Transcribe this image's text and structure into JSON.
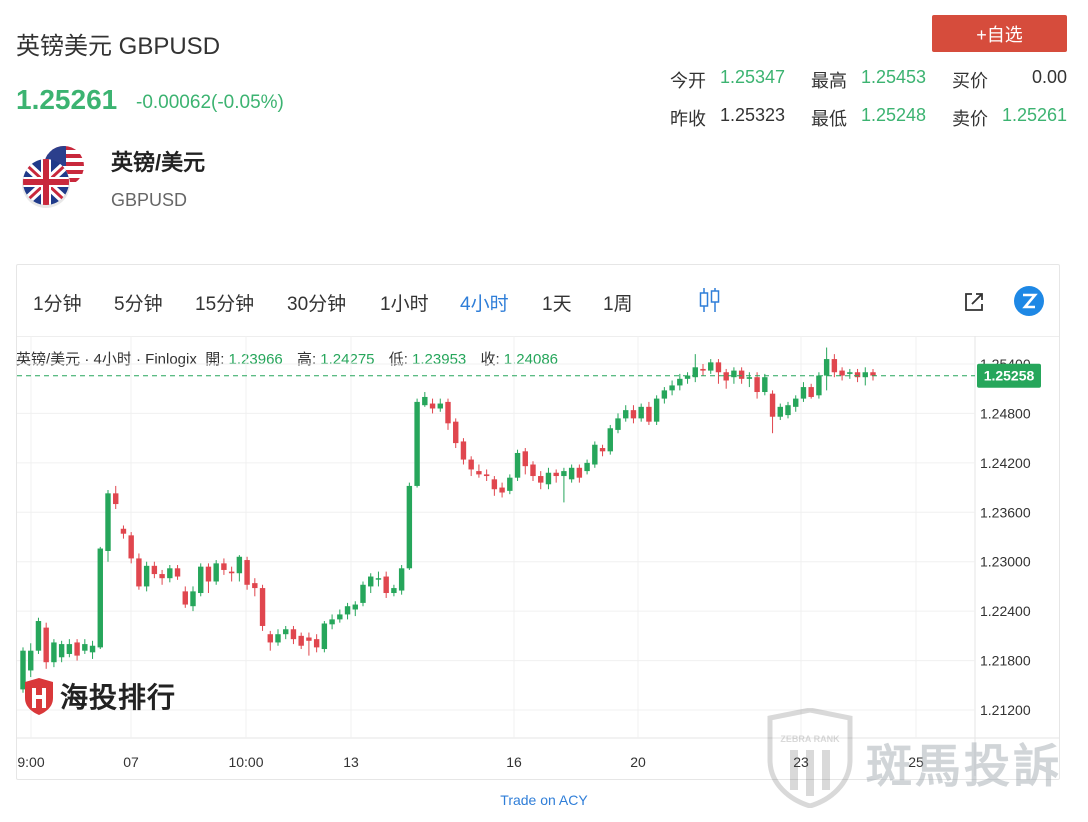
{
  "header": {
    "title": "英镑美元 GBPUSD",
    "price": "1.25261",
    "change": "-0.00062(-0.05%)",
    "add_label": "+自选"
  },
  "quotes": {
    "open_label": "今开",
    "open": "1.25347",
    "high_label": "最高",
    "high": "1.25453",
    "buy_label": "买价",
    "buy": "0.00",
    "prev_label": "昨收",
    "prev": "1.25323",
    "low_label": "最低",
    "low": "1.25248",
    "sell_label": "卖价",
    "sell": "1.25261"
  },
  "symbol": {
    "name_cn": "英镑/美元",
    "name_en": "GBPUSD",
    "icon": "gb-us-flag-icon"
  },
  "toolbar": {
    "timeframes": [
      "1分钟",
      "5分钟",
      "15分钟",
      "30分钟",
      "1小时",
      "4小时",
      "1天",
      "1周"
    ],
    "active_index": 5,
    "icons": [
      "candle-type-icon",
      "external-link-icon",
      "tradingview-logo-icon"
    ]
  },
  "legend": {
    "prefix": "英镑/美元 · 4小时 · Finlogix",
    "open_label": "開:",
    "open": "1.23966",
    "high_label": "高:",
    "high": "1.24275",
    "low_label": "低:",
    "low": "1.23953",
    "close_label": "收:",
    "close": "1.24086"
  },
  "colors": {
    "up": "#26a65b",
    "down": "#e0464e",
    "accent": "#2f7ed8",
    "button": "#d64c3c"
  },
  "chart_data": {
    "type": "candlestick",
    "y_ticks": [
      "1.25400",
      "1.24800",
      "1.24200",
      "1.23600",
      "1.23000",
      "1.22400",
      "1.21800",
      "1.21200"
    ],
    "x_ticks": [
      "9:00",
      "07",
      "10:00",
      "13",
      "16",
      "20",
      "23",
      "25"
    ],
    "last_price_label": "1.25258",
    "last_price": 1.25258,
    "ylim": [
      1.2086,
      1.2574
    ],
    "grid": true,
    "candles": [
      [
        1.2145,
        1.2192,
        1.2141,
        1.2196
      ],
      [
        1.2168,
        1.2192,
        1.216,
        1.2201
      ],
      [
        1.2192,
        1.2228,
        1.2188,
        1.2232
      ],
      [
        1.222,
        1.2178,
        1.217,
        1.2226
      ],
      [
        1.2178,
        1.2202,
        1.2172,
        1.2206
      ],
      [
        1.2184,
        1.22,
        1.2178,
        1.2204
      ],
      [
        1.2188,
        1.22,
        1.2184,
        1.2206
      ],
      [
        1.2202,
        1.2186,
        1.218,
        1.2206
      ],
      [
        1.2192,
        1.22,
        1.2188,
        1.2206
      ],
      [
        1.219,
        1.2198,
        1.2182,
        1.2204
      ],
      [
        1.2196,
        1.2316,
        1.2194,
        1.2318
      ],
      [
        1.2313,
        1.2383,
        1.23,
        1.2387
      ],
      [
        1.2383,
        1.237,
        1.2364,
        1.2392
      ],
      [
        1.234,
        1.2334,
        1.2328,
        1.2344
      ],
      [
        1.2332,
        1.2304,
        1.2298,
        1.2336
      ],
      [
        1.2304,
        1.227,
        1.2266,
        1.231
      ],
      [
        1.227,
        1.2295,
        1.2264,
        1.23
      ],
      [
        1.2295,
        1.2285,
        1.228,
        1.23
      ],
      [
        1.2285,
        1.228,
        1.2272,
        1.229
      ],
      [
        1.228,
        1.2292,
        1.2275,
        1.2296
      ],
      [
        1.2292,
        1.2282,
        1.2278,
        1.2296
      ],
      [
        1.2264,
        1.2248,
        1.2244,
        1.227
      ],
      [
        1.2246,
        1.2264,
        1.224,
        1.227
      ],
      [
        1.2262,
        1.2294,
        1.2258,
        1.2298
      ],
      [
        1.2294,
        1.2276,
        1.2262,
        1.2298
      ],
      [
        1.2276,
        1.2298,
        1.2272,
        1.2302
      ],
      [
        1.2298,
        1.229,
        1.2284,
        1.2304
      ],
      [
        1.2288,
        1.2286,
        1.2276,
        1.2294
      ],
      [
        1.2286,
        1.2306,
        1.2276,
        1.2308
      ],
      [
        1.2302,
        1.2272,
        1.2266,
        1.2306
      ],
      [
        1.2274,
        1.2268,
        1.2258,
        1.228
      ],
      [
        1.2268,
        1.2222,
        1.2216,
        1.2272
      ],
      [
        1.2212,
        1.2202,
        1.2192,
        1.2216
      ],
      [
        1.2202,
        1.2212,
        1.2198,
        1.2218
      ],
      [
        1.2212,
        1.2218,
        1.2206,
        1.2222
      ],
      [
        1.2218,
        1.2206,
        1.22,
        1.2222
      ],
      [
        1.221,
        1.2198,
        1.2194,
        1.2214
      ],
      [
        1.2208,
        1.2204,
        1.2186,
        1.2214
      ],
      [
        1.2206,
        1.2196,
        1.219,
        1.2212
      ],
      [
        1.2194,
        1.2225,
        1.219,
        1.2228
      ],
      [
        1.2224,
        1.223,
        1.2218,
        1.2236
      ],
      [
        1.223,
        1.2236,
        1.2226,
        1.2242
      ],
      [
        1.2236,
        1.2246,
        1.223,
        1.225
      ],
      [
        1.2242,
        1.2248,
        1.2234,
        1.2252
      ],
      [
        1.225,
        1.2272,
        1.2246,
        1.2276
      ],
      [
        1.227,
        1.2282,
        1.2262,
        1.2286
      ],
      [
        1.228,
        1.228,
        1.227,
        1.2288
      ],
      [
        1.2282,
        1.2262,
        1.2256,
        1.2288
      ],
      [
        1.2262,
        1.2268,
        1.2258,
        1.2272
      ],
      [
        1.2265,
        1.2292,
        1.226,
        1.2296
      ],
      [
        1.2292,
        1.2392,
        1.229,
        1.2396
      ],
      [
        1.2392,
        1.2494,
        1.239,
        1.2498
      ],
      [
        1.249,
        1.25,
        1.2488,
        1.2506
      ],
      [
        1.2492,
        1.2486,
        1.248,
        1.2498
      ],
      [
        1.2486,
        1.2492,
        1.2482,
        1.2498
      ],
      [
        1.2494,
        1.2468,
        1.246,
        1.2498
      ],
      [
        1.247,
        1.2444,
        1.2438,
        1.2474
      ],
      [
        1.2446,
        1.2424,
        1.2418,
        1.245
      ],
      [
        1.2424,
        1.2412,
        1.2404,
        1.2428
      ],
      [
        1.241,
        1.2406,
        1.2402,
        1.2418
      ],
      [
        1.2406,
        1.2404,
        1.2398,
        1.2412
      ],
      [
        1.24,
        1.2388,
        1.238,
        1.2404
      ],
      [
        1.239,
        1.2384,
        1.2378,
        1.2396
      ],
      [
        1.2386,
        1.2402,
        1.2382,
        1.2406
      ],
      [
        1.2402,
        1.2432,
        1.2398,
        1.2436
      ],
      [
        1.2434,
        1.2416,
        1.2406,
        1.2438
      ],
      [
        1.2418,
        1.2404,
        1.2398,
        1.2422
      ],
      [
        1.2404,
        1.2396,
        1.2388,
        1.241
      ],
      [
        1.2394,
        1.2408,
        1.2388,
        1.2414
      ],
      [
        1.2408,
        1.2404,
        1.2396,
        1.2412
      ],
      [
        1.2404,
        1.241,
        1.2372,
        1.2414
      ],
      [
        1.24,
        1.2414,
        1.2396,
        1.2418
      ],
      [
        1.2414,
        1.2402,
        1.2396,
        1.2418
      ],
      [
        1.241,
        1.242,
        1.2406,
        1.2424
      ],
      [
        1.2418,
        1.2442,
        1.2414,
        1.2446
      ],
      [
        1.2438,
        1.2434,
        1.2428,
        1.2442
      ],
      [
        1.2434,
        1.2462,
        1.243,
        1.2466
      ],
      [
        1.246,
        1.2474,
        1.2456,
        1.248
      ],
      [
        1.2474,
        1.2484,
        1.247,
        1.249
      ],
      [
        1.2484,
        1.2474,
        1.2468,
        1.249
      ],
      [
        1.2474,
        1.2488,
        1.247,
        1.2492
      ],
      [
        1.2488,
        1.247,
        1.2466,
        1.2494
      ],
      [
        1.247,
        1.2498,
        1.2466,
        1.2502
      ],
      [
        1.2498,
        1.2508,
        1.2492,
        1.2512
      ],
      [
        1.2508,
        1.2514,
        1.2502,
        1.252
      ],
      [
        1.2514,
        1.2522,
        1.2508,
        1.2528
      ],
      [
        1.2522,
        1.2526,
        1.2516,
        1.253
      ],
      [
        1.2524,
        1.2536,
        1.2518,
        1.2552
      ],
      [
        1.2534,
        1.2532,
        1.2526,
        1.254
      ],
      [
        1.2532,
        1.2542,
        1.2528,
        1.2546
      ],
      [
        1.2542,
        1.253,
        1.2516,
        1.2546
      ],
      [
        1.253,
        1.252,
        1.251,
        1.2534
      ],
      [
        1.2524,
        1.2532,
        1.2516,
        1.2536
      ],
      [
        1.2532,
        1.2522,
        1.2516,
        1.2536
      ],
      [
        1.2522,
        1.2524,
        1.2512,
        1.253
      ],
      [
        1.2524,
        1.2506,
        1.2498,
        1.253
      ],
      [
        1.2506,
        1.2524,
        1.2502,
        1.2528
      ],
      [
        1.2504,
        1.2476,
        1.2456,
        1.2508
      ],
      [
        1.2476,
        1.2488,
        1.2472,
        1.2492
      ],
      [
        1.2478,
        1.249,
        1.2474,
        1.2494
      ],
      [
        1.2488,
        1.2498,
        1.2482,
        1.2502
      ],
      [
        1.2498,
        1.2512,
        1.2494,
        1.2518
      ],
      [
        1.2512,
        1.25,
        1.2498,
        1.2516
      ],
      [
        1.2502,
        1.2526,
        1.2498,
        1.253
      ],
      [
        1.2526,
        1.2546,
        1.2508,
        1.256
      ],
      [
        1.2546,
        1.253,
        1.2524,
        1.2552
      ],
      [
        1.2532,
        1.2526,
        1.252,
        1.2536
      ],
      [
        1.2528,
        1.253,
        1.2522,
        1.2534
      ],
      [
        1.253,
        1.2524,
        1.2518,
        1.2534
      ],
      [
        1.2524,
        1.253,
        1.2514,
        1.2536
      ],
      [
        1.253,
        1.2526,
        1.252,
        1.2534
      ]
    ]
  },
  "watermarks": {
    "left_logo_text": "海投排行",
    "right_badge_text": "ZEBRA RANK",
    "right_logo_text": "斑馬投訴"
  },
  "footer": {
    "link": "Trade on ACY"
  }
}
